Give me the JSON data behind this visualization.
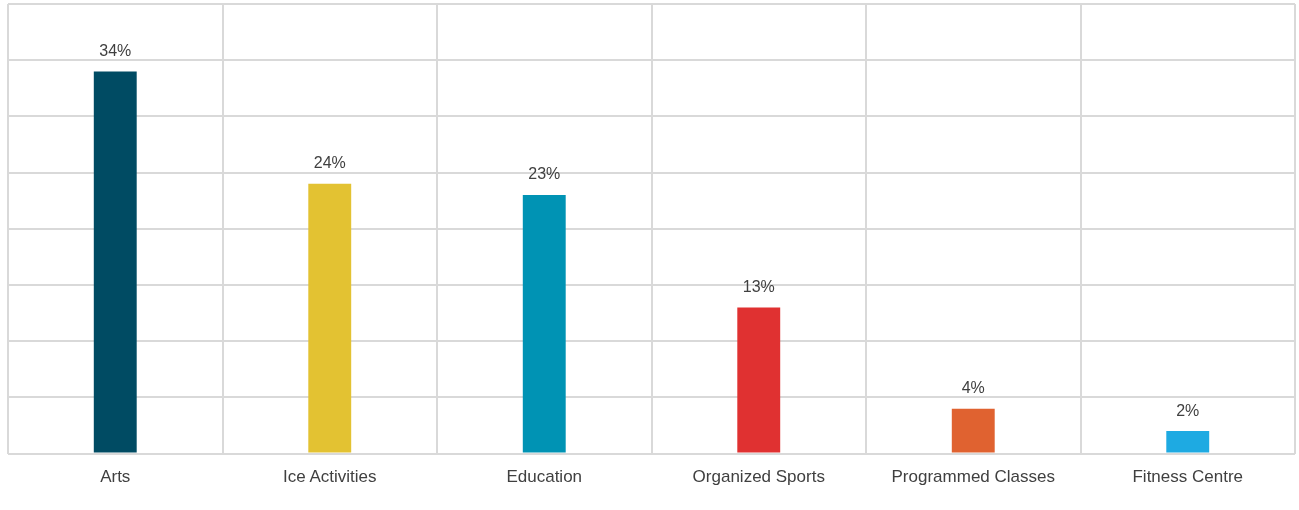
{
  "chart_data": {
    "type": "bar",
    "categories": [
      "Arts",
      "Ice Activities",
      "Education",
      "Organized Sports",
      "Programmed Classes",
      "Fitness Centre"
    ],
    "values": [
      34,
      24,
      23,
      13,
      4,
      2
    ],
    "colors": [
      "#004b63",
      "#e3c232",
      "#0093b4",
      "#e03131",
      "#e06230",
      "#1eaae2"
    ],
    "value_labels": [
      "34%",
      "24%",
      "23%",
      "13%",
      "4%",
      "2%"
    ],
    "ylim": [
      0,
      40
    ],
    "yticks": [
      {
        "value": 0,
        "label": null
      },
      {
        "value": 5,
        "label": null
      },
      {
        "value": 10,
        "label": null
      },
      {
        "value": 15,
        "label": null
      },
      {
        "value": 20,
        "label": null
      },
      {
        "value": 25,
        "label": null
      },
      {
        "value": 30,
        "label": null
      },
      {
        "value": 35,
        "label": null
      },
      {
        "value": 40,
        "label": null
      }
    ],
    "grid": true,
    "tick_labels": "x",
    "legend": false
  }
}
